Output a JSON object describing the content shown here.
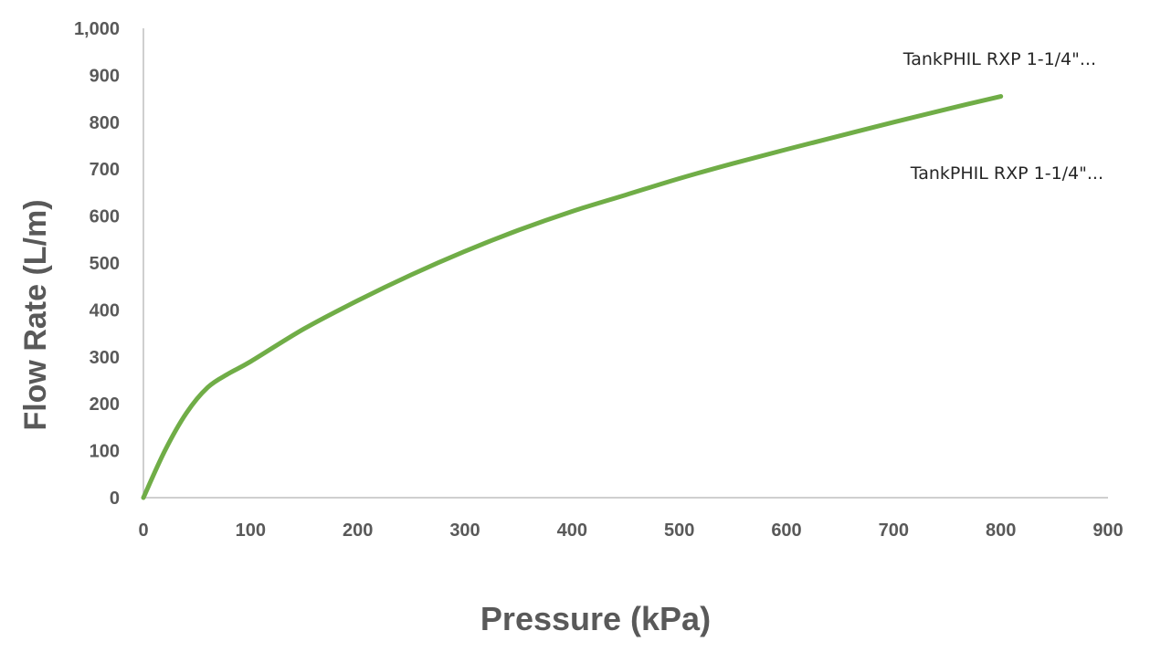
{
  "chart_data": {
    "type": "line",
    "xlabel": "Pressure (kPa)",
    "ylabel": "Flow Rate (L/m)",
    "xlim": [
      0,
      900
    ],
    "ylim": [
      0,
      1000
    ],
    "x_ticks": [
      "0",
      "100",
      "200",
      "300",
      "400",
      "500",
      "600",
      "700",
      "800",
      "900"
    ],
    "y_ticks": [
      "0",
      "100",
      "200",
      "300",
      "400",
      "500",
      "600",
      "700",
      "800",
      "900",
      "1,000"
    ],
    "grid": false,
    "legend_entries": [
      "TankPHIL RXP 1-1/4\"...",
      "TankPHIL RXP 1-1/4\"..."
    ],
    "series": [
      {
        "name": "TankPHIL RXP 1-1/4\"...",
        "color": "#70ad47",
        "x": [
          0,
          20,
          40,
          60,
          80,
          100,
          150,
          200,
          250,
          300,
          350,
          400,
          450,
          500,
          550,
          600,
          650,
          700,
          750,
          800
        ],
        "y": [
          0,
          100,
          180,
          235,
          265,
          290,
          360,
          420,
          475,
          525,
          570,
          610,
          645,
          680,
          712,
          742,
          771,
          800,
          828,
          855
        ]
      }
    ]
  }
}
